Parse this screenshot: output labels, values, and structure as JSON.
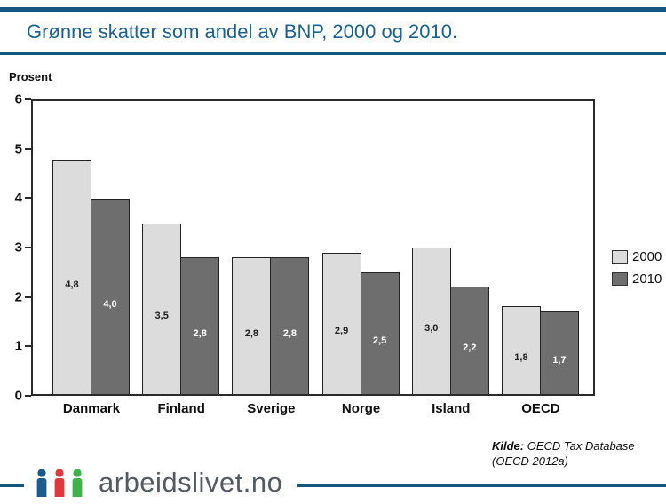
{
  "header": {
    "title": "Grønne skatter som andel av BNP, 2000 og 2010."
  },
  "chart_data": {
    "type": "bar",
    "title": "Grønne skatter som andel av BNP, 2000 og 2010.",
    "ylabel": "Prosent",
    "categories": [
      "Danmark",
      "Finland",
      "Sverige",
      "Norge",
      "Island",
      "OECD"
    ],
    "series": [
      {
        "name": "2000",
        "values": [
          4.8,
          3.5,
          2.8,
          2.9,
          3.0,
          1.8
        ],
        "labels": [
          "4,8",
          "3,5",
          "2,8",
          "2,9",
          "3,0",
          "1,8"
        ],
        "color": "#dcdcdc",
        "label_color": "#1d1d1d"
      },
      {
        "name": "2010",
        "values": [
          4.0,
          2.8,
          2.8,
          2.5,
          2.2,
          1.7
        ],
        "labels": [
          "4,0",
          "2,8",
          "2,8",
          "2,5",
          "2,2",
          "1,7"
        ],
        "color": "#6e6e6e",
        "label_color": "#ffffff"
      }
    ],
    "ylim": [
      0,
      6
    ],
    "yticks": [
      0,
      1,
      2,
      3,
      4,
      5,
      6
    ],
    "grid": false,
    "legend_position": "right"
  },
  "source": {
    "prefix": "Kilde:",
    "text": " OECD Tax Database",
    "line2": "(OECD 2012a)"
  },
  "footer": {
    "logo_text": "arbeidslivet.no",
    "logo_icon_colors": [
      "#1e5b8d",
      "#e0393b",
      "#3db44a"
    ]
  },
  "colors": {
    "rule_blue": "#15567f",
    "title_blue": "#1a6391",
    "axis_dark": "#2a2a2a",
    "logo_gray": "#525a63"
  }
}
